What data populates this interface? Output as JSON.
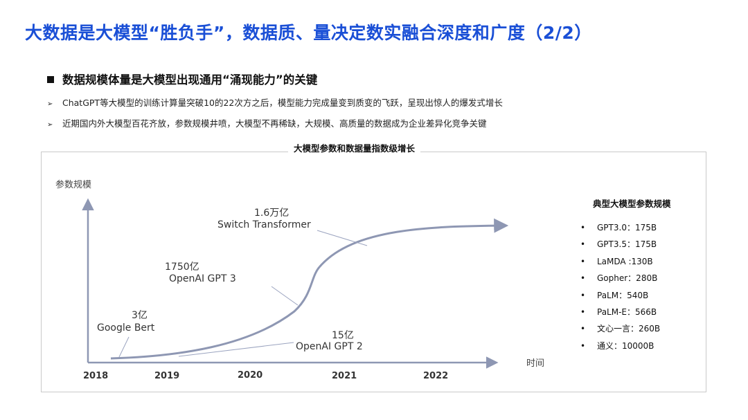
{
  "page": {
    "title": "大数据是大模型“胜负手”，数据质、量决定数实融合深度和广度（2/2）",
    "heading": "数据规模体量是大模型出现通用“涌现能力”的关键",
    "bullets": [
      "ChatGPT等大模型的训练计算量突破10的22次方之后，模型能力完成量变到质变的飞跃，呈现出惊人的爆发式增长",
      "近期国内外大模型百花齐放，参数规模井喷，大模型不再稀缺，大规模、高质量的数据成为企业差异化竞争关键"
    ]
  },
  "colors": {
    "title": "#1a4fd6",
    "curve": "#8e97b3",
    "axis": "#8e97b3"
  },
  "icons": {
    "heading_marker": "square-bullet-icon",
    "bullet_marker": "arrow-bullet-icon",
    "legend_marker": "dot-bullet-icon"
  },
  "chart_data": {
    "type": "line",
    "title": "大模型参数和数据量指数级增长",
    "ylabel": "参数规模",
    "xlabel": "时间",
    "categories": [
      "2018",
      "2019",
      "2020",
      "2021",
      "2022"
    ],
    "annotations": [
      {
        "value": "3亿",
        "model": "Google Bert"
      },
      {
        "value": "15亿",
        "model": "OpenAI GPT  2"
      },
      {
        "value": "1750亿",
        "model": "OpenAI GPT 3"
      },
      {
        "value": "1.6万亿",
        "model": "Switch Transformer"
      }
    ],
    "legend": {
      "title": "典型大模型参数规模",
      "items": [
        "GPT3.0：175B",
        "GPT3.5：175B",
        "LaMDA :130B",
        "Gopher：280B",
        "PaLM：540B",
        "PaLM-E：566B",
        "文心一言：260B",
        "通义：10000B"
      ]
    }
  }
}
